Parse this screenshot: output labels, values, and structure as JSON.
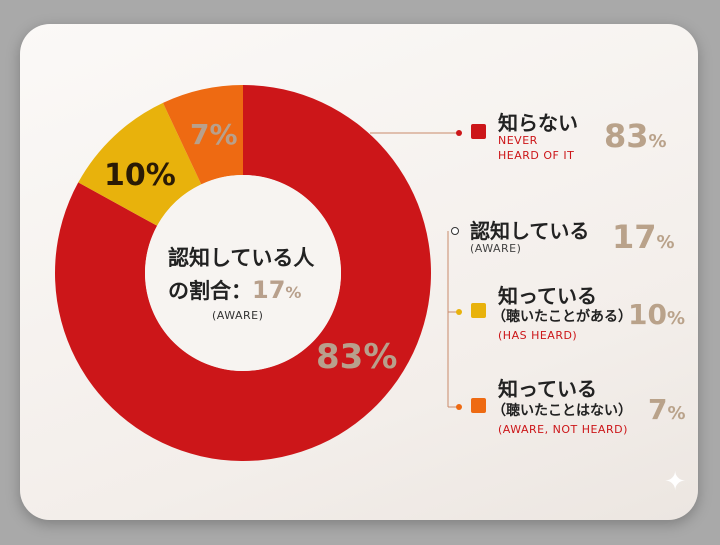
{
  "chart_data": {
    "type": "pie",
    "donut": true,
    "slices": [
      {
        "label": "知らない",
        "value": 83,
        "color": "#cc1619",
        "text_color": "#b8a08c"
      },
      {
        "label": "知っている（聴いたことがある）",
        "value": 10,
        "color": "#e8b20c",
        "text_color": "#2a1a05"
      },
      {
        "label": "知っている（聴いたことはない）",
        "value": 7,
        "color": "#ee6a12",
        "text_color": "#b8a08c"
      }
    ],
    "slice_labels": [
      "83%",
      "10%",
      "7%"
    ],
    "center": {
      "line1": "認知している人",
      "line2": "の割合：",
      "value": "17",
      "unit": "%",
      "sub": "(AWARE)"
    }
  },
  "legend": [
    {
      "jp": "知らない",
      "en1": "NEVER",
      "en2": "HEARD OF IT",
      "value": "83",
      "unit": "%",
      "marker_color": "#cc1619",
      "en_color": "#cc1619"
    },
    {
      "jp": "認知している",
      "en1": "(AWARE)",
      "value": "17",
      "unit": "%",
      "marker_color": "#ffffff",
      "en_color": "#444444"
    },
    {
      "jp": "知っている",
      "jp2": "（聴いたことがある）",
      "en1": "(HAS HEARD)",
      "value": "10",
      "unit": "%",
      "marker_color": "#e8b20c",
      "en_color": "#cc1619"
    },
    {
      "jp": "知っている",
      "jp2": "（聴いたことはない）",
      "en1": "(AWARE, NOT HEARD)",
      "value": "7",
      "unit": "%",
      "marker_color": "#ee6a12",
      "en_color": "#cc1619"
    }
  ],
  "sparkle": "✦"
}
